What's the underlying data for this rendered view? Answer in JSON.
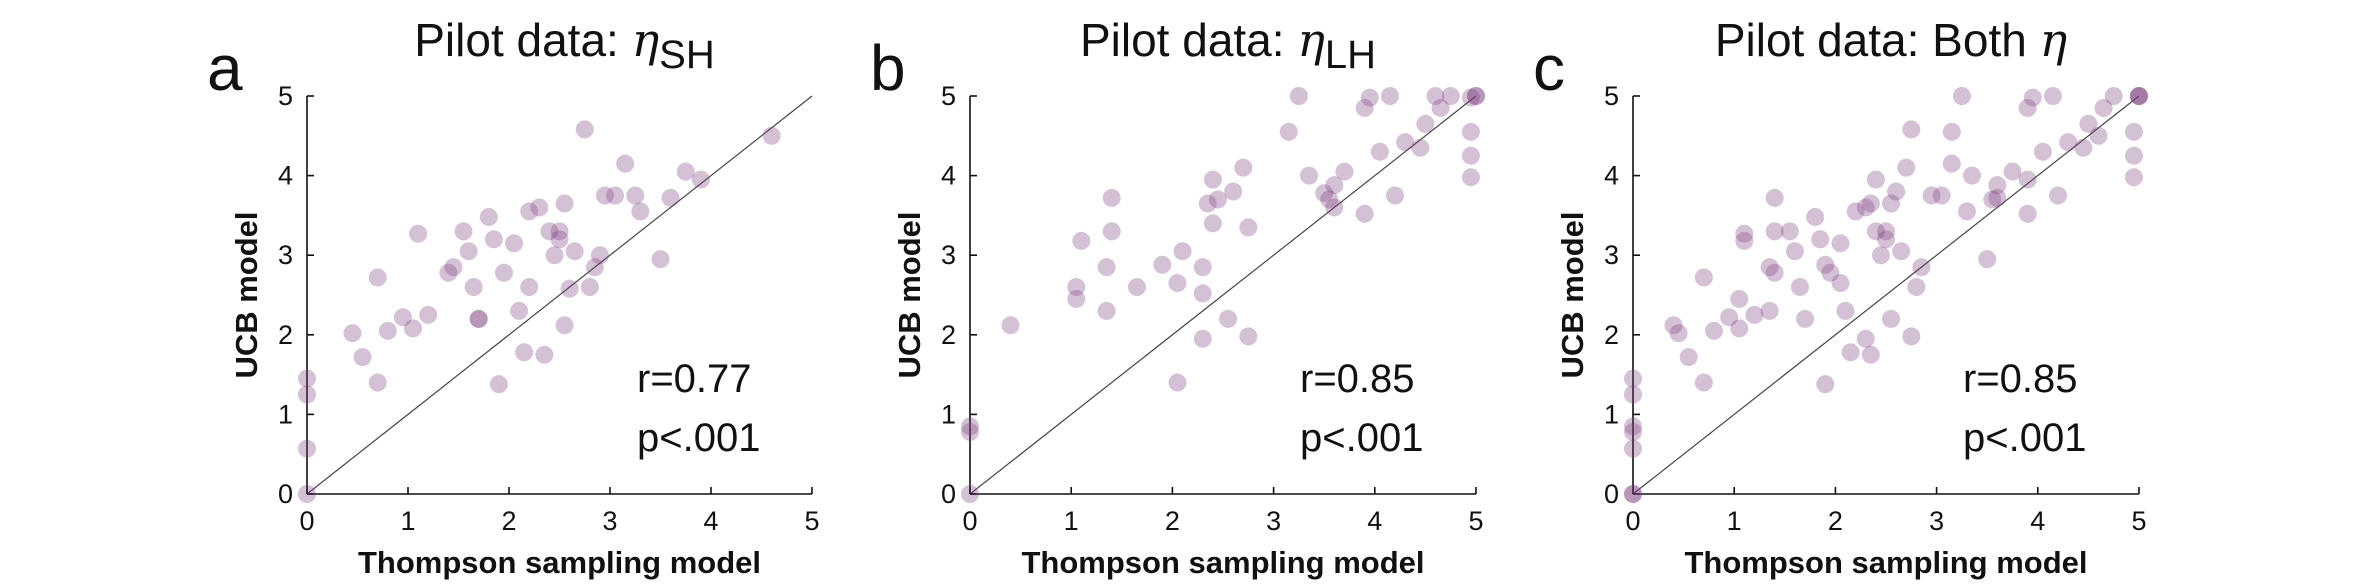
{
  "chart_data": [
    {
      "type": "scatter",
      "letter": "a",
      "title_text": "Pilot data: ",
      "title_symbol": "η",
      "title_subscript": "SH",
      "xlabel": "Thompson sampling model",
      "ylabel": "UCB model",
      "xlim": [
        0,
        5
      ],
      "ylim": [
        0,
        5
      ],
      "xticks": [
        "0",
        "1",
        "2",
        "3",
        "4",
        "5"
      ],
      "yticks": [
        "0",
        "1",
        "2",
        "3",
        "4",
        "5"
      ],
      "stat_r": "r=0.77",
      "stat_p": "p<.001",
      "reference_line": "y=x",
      "points": [
        [
          0,
          1.45
        ],
        [
          0,
          1.25
        ],
        [
          0,
          0.57
        ],
        [
          0,
          0
        ],
        [
          0.45,
          2.02
        ],
        [
          0.55,
          1.72
        ],
        [
          0.7,
          2.72
        ],
        [
          0.7,
          1.4
        ],
        [
          0.8,
          2.05
        ],
        [
          0.95,
          2.22
        ],
        [
          1.05,
          2.08
        ],
        [
          1.1,
          3.27
        ],
        [
          1.2,
          2.25
        ],
        [
          1.4,
          2.78
        ],
        [
          1.45,
          2.85
        ],
        [
          1.55,
          3.3
        ],
        [
          1.6,
          3.05
        ],
        [
          1.65,
          2.6
        ],
        [
          1.7,
          2.2
        ],
        [
          1.7,
          2.2
        ],
        [
          1.8,
          3.48
        ],
        [
          1.85,
          3.2
        ],
        [
          1.9,
          1.38
        ],
        [
          1.95,
          2.78
        ],
        [
          2.05,
          3.15
        ],
        [
          2.1,
          2.3
        ],
        [
          2.15,
          1.78
        ],
        [
          2.2,
          3.55
        ],
        [
          2.2,
          2.6
        ],
        [
          2.3,
          3.6
        ],
        [
          2.35,
          1.75
        ],
        [
          2.4,
          3.3
        ],
        [
          2.45,
          3.0
        ],
        [
          2.5,
          3.3
        ],
        [
          2.5,
          3.2
        ],
        [
          2.55,
          2.12
        ],
        [
          2.55,
          3.65
        ],
        [
          2.6,
          2.58
        ],
        [
          2.65,
          3.05
        ],
        [
          2.75,
          4.58
        ],
        [
          2.8,
          2.6
        ],
        [
          2.85,
          2.85
        ],
        [
          2.9,
          3.0
        ],
        [
          2.95,
          3.75
        ],
        [
          3.05,
          3.75
        ],
        [
          3.15,
          4.15
        ],
        [
          3.25,
          3.75
        ],
        [
          3.3,
          3.55
        ],
        [
          3.5,
          2.95
        ],
        [
          3.6,
          3.72
        ],
        [
          3.75,
          4.05
        ],
        [
          3.9,
          3.95
        ],
        [
          4.6,
          4.5
        ]
      ]
    },
    {
      "type": "scatter",
      "letter": "b",
      "title_text": "Pilot data: ",
      "title_symbol": "η",
      "title_subscript": "LH",
      "xlabel": "Thompson sampling model",
      "ylabel": "UCB model",
      "xlim": [
        0,
        5
      ],
      "ylim": [
        0,
        5
      ],
      "xticks": [
        "0",
        "1",
        "2",
        "3",
        "4",
        "5"
      ],
      "yticks": [
        "0",
        "1",
        "2",
        "3",
        "4",
        "5"
      ],
      "stat_r": "r=0.85",
      "stat_p": "p<.001",
      "reference_line": "y=x",
      "points": [
        [
          0,
          0.85
        ],
        [
          0,
          0.78
        ],
        [
          0,
          0
        ],
        [
          0.4,
          2.12
        ],
        [
          1.05,
          2.45
        ],
        [
          1.05,
          2.6
        ],
        [
          1.1,
          3.18
        ],
        [
          1.35,
          2.3
        ],
        [
          1.35,
          2.85
        ],
        [
          1.4,
          3.3
        ],
        [
          1.4,
          3.72
        ],
        [
          1.65,
          2.6
        ],
        [
          1.9,
          2.88
        ],
        [
          2.05,
          2.65
        ],
        [
          2.05,
          1.4
        ],
        [
          2.1,
          3.05
        ],
        [
          2.3,
          1.95
        ],
        [
          2.3,
          2.85
        ],
        [
          2.3,
          2.52
        ],
        [
          2.35,
          3.65
        ],
        [
          2.4,
          3.95
        ],
        [
          2.4,
          3.4
        ],
        [
          2.45,
          3.7
        ],
        [
          2.55,
          2.2
        ],
        [
          2.6,
          3.8
        ],
        [
          2.7,
          4.1
        ],
        [
          2.75,
          1.98
        ],
        [
          2.75,
          3.35
        ],
        [
          3.15,
          4.55
        ],
        [
          3.25,
          5.0
        ],
        [
          3.35,
          4.0
        ],
        [
          3.5,
          3.78
        ],
        [
          3.55,
          3.7
        ],
        [
          3.6,
          3.6
        ],
        [
          3.6,
          3.88
        ],
        [
          3.7,
          4.05
        ],
        [
          3.9,
          3.52
        ],
        [
          3.9,
          4.85
        ],
        [
          3.95,
          4.98
        ],
        [
          4.05,
          4.3
        ],
        [
          4.15,
          5.0
        ],
        [
          4.2,
          3.75
        ],
        [
          4.3,
          4.42
        ],
        [
          4.45,
          4.35
        ],
        [
          4.5,
          4.65
        ],
        [
          4.6,
          5.0
        ],
        [
          4.65,
          4.85
        ],
        [
          4.75,
          5.0
        ],
        [
          4.95,
          4.98
        ],
        [
          4.95,
          4.55
        ],
        [
          4.95,
          4.25
        ],
        [
          4.95,
          3.98
        ],
        [
          5,
          5
        ],
        [
          5,
          5
        ]
      ]
    },
    {
      "type": "scatter",
      "letter": "c",
      "title_text": "Pilot data: Both ",
      "title_symbol": "η",
      "title_subscript": "",
      "xlabel": "Thompson sampling model",
      "ylabel": "UCB model",
      "xlim": [
        0,
        5
      ],
      "ylim": [
        0,
        5
      ],
      "xticks": [
        "0",
        "1",
        "2",
        "3",
        "4",
        "5"
      ],
      "yticks": [
        "0",
        "1",
        "2",
        "3",
        "4",
        "5"
      ],
      "stat_r": "r=0.85",
      "stat_p": "p<.001",
      "reference_line": "y=x",
      "points": [
        [
          0,
          1.45
        ],
        [
          0,
          1.25
        ],
        [
          0,
          0.85
        ],
        [
          0,
          0.78
        ],
        [
          0,
          0.57
        ],
        [
          0,
          0
        ],
        [
          0,
          0
        ],
        [
          0.4,
          2.12
        ],
        [
          0.45,
          2.02
        ],
        [
          0.55,
          1.72
        ],
        [
          0.7,
          2.72
        ],
        [
          0.7,
          1.4
        ],
        [
          0.8,
          2.05
        ],
        [
          0.95,
          2.22
        ],
        [
          1.05,
          2.45
        ],
        [
          1.05,
          2.08
        ],
        [
          1.1,
          3.27
        ],
        [
          1.1,
          3.18
        ],
        [
          1.2,
          2.25
        ],
        [
          1.35,
          2.3
        ],
        [
          1.35,
          2.85
        ],
        [
          1.4,
          2.78
        ],
        [
          1.4,
          3.3
        ],
        [
          1.4,
          3.72
        ],
        [
          1.55,
          3.3
        ],
        [
          1.6,
          3.05
        ],
        [
          1.65,
          2.6
        ],
        [
          1.7,
          2.2
        ],
        [
          1.8,
          3.48
        ],
        [
          1.85,
          3.2
        ],
        [
          1.9,
          1.38
        ],
        [
          1.9,
          2.88
        ],
        [
          1.95,
          2.78
        ],
        [
          2.05,
          3.15
        ],
        [
          2.05,
          2.65
        ],
        [
          2.1,
          2.3
        ],
        [
          2.15,
          1.78
        ],
        [
          2.2,
          3.55
        ],
        [
          2.3,
          1.95
        ],
        [
          2.3,
          3.6
        ],
        [
          2.35,
          1.75
        ],
        [
          2.35,
          3.65
        ],
        [
          2.4,
          3.95
        ],
        [
          2.4,
          3.3
        ],
        [
          2.45,
          3.0
        ],
        [
          2.5,
          3.3
        ],
        [
          2.5,
          3.2
        ],
        [
          2.55,
          2.2
        ],
        [
          2.55,
          3.65
        ],
        [
          2.6,
          3.8
        ],
        [
          2.65,
          3.05
        ],
        [
          2.7,
          4.1
        ],
        [
          2.75,
          4.58
        ],
        [
          2.75,
          1.98
        ],
        [
          2.8,
          2.6
        ],
        [
          2.85,
          2.85
        ],
        [
          2.95,
          3.75
        ],
        [
          3.05,
          3.75
        ],
        [
          3.15,
          4.15
        ],
        [
          3.15,
          4.55
        ],
        [
          3.25,
          5.0
        ],
        [
          3.3,
          3.55
        ],
        [
          3.35,
          4.0
        ],
        [
          3.5,
          2.95
        ],
        [
          3.55,
          3.7
        ],
        [
          3.6,
          3.88
        ],
        [
          3.6,
          3.72
        ],
        [
          3.75,
          4.05
        ],
        [
          3.9,
          3.52
        ],
        [
          3.9,
          4.85
        ],
        [
          3.95,
          4.98
        ],
        [
          3.9,
          3.95
        ],
        [
          4.05,
          4.3
        ],
        [
          4.15,
          5.0
        ],
        [
          4.2,
          3.75
        ],
        [
          4.3,
          4.42
        ],
        [
          4.45,
          4.35
        ],
        [
          4.5,
          4.65
        ],
        [
          4.6,
          4.5
        ],
        [
          4.65,
          4.85
        ],
        [
          4.75,
          5.0
        ],
        [
          4.95,
          4.55
        ],
        [
          4.95,
          4.25
        ],
        [
          4.95,
          3.98
        ],
        [
          5,
          5
        ],
        [
          5,
          5
        ],
        [
          5,
          5
        ]
      ]
    }
  ]
}
